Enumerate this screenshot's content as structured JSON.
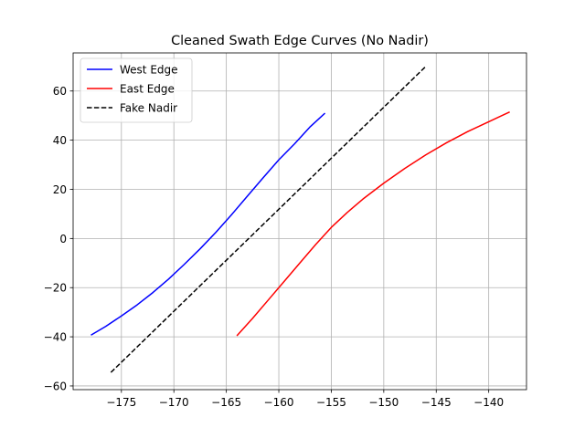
{
  "chart_data": {
    "type": "line",
    "title": "Cleaned Swath Edge Curves (No Nadir)",
    "xlabel": "",
    "ylabel": "",
    "xlim": [
      -179.6,
      -136.4
    ],
    "ylim": [
      -61.5,
      75.5
    ],
    "xticks": [
      -175,
      -170,
      -165,
      -160,
      -155,
      -150,
      -145,
      -140
    ],
    "yticks": [
      -60,
      -40,
      -20,
      0,
      20,
      40,
      60
    ],
    "grid": true,
    "legend_position": "upper-left",
    "series": [
      {
        "name": "West Edge",
        "color": "#0000ff",
        "dash": "solid",
        "x": [
          -177.9,
          -176.5,
          -175.0,
          -173.5,
          -172.0,
          -170.5,
          -169.0,
          -167.5,
          -166.0,
          -164.5,
          -163.0,
          -161.5,
          -160.0,
          -158.5,
          -157.0,
          -155.6
        ],
        "y": [
          -39.3,
          -35.8,
          -31.5,
          -27.0,
          -22.0,
          -16.5,
          -10.5,
          -4.2,
          2.5,
          9.7,
          17.2,
          24.7,
          32.0,
          38.5,
          45.5,
          51.0
        ]
      },
      {
        "name": "East Edge",
        "color": "#ff0000",
        "dash": "solid",
        "x": [
          -164.0,
          -162.5,
          -161.0,
          -159.5,
          -158.0,
          -156.5,
          -155.0,
          -153.5,
          -152.0,
          -150.0,
          -148.0,
          -146.0,
          -144.0,
          -142.0,
          -140.0,
          -138.0
        ],
        "y": [
          -39.6,
          -32.5,
          -25.0,
          -17.5,
          -10.0,
          -2.5,
          4.5,
          10.5,
          16.0,
          22.5,
          28.5,
          34.0,
          39.0,
          43.5,
          47.5,
          51.5
        ]
      },
      {
        "name": "Fake Nadir",
        "color": "#000000",
        "dash": "dashed",
        "x": [
          -176.0,
          -146.0
        ],
        "y": [
          -54.5,
          70.0
        ]
      }
    ]
  }
}
